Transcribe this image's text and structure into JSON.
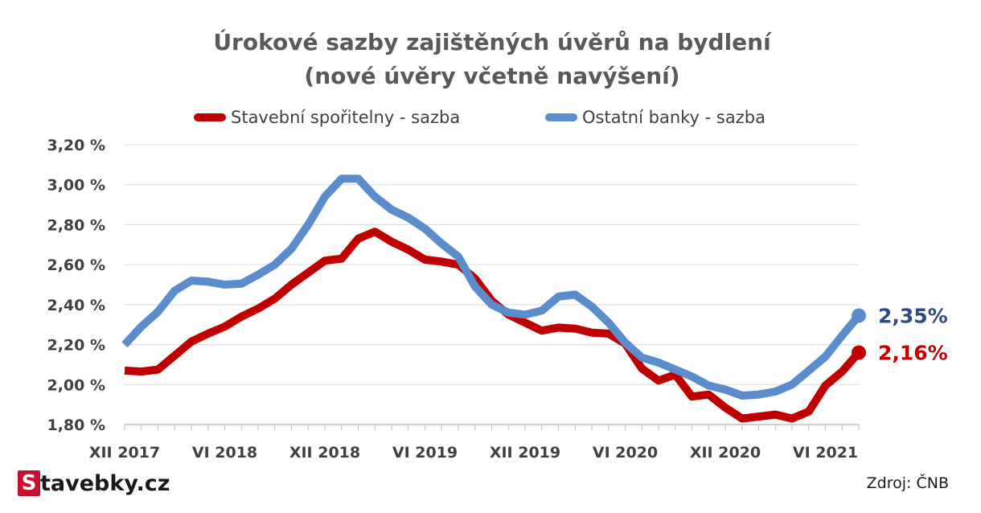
{
  "brand": {
    "logo_letter": "S",
    "rest": "tavebky.cz"
  },
  "source": "Zdroj: ČNB",
  "colors": {
    "red": "#c00000",
    "blue": "#5b8ccc",
    "blue_label": "#2e4a7e",
    "axis": "#bfbfbf",
    "grid": "#d9d9d9"
  },
  "chart_data": {
    "type": "line",
    "title": "Úrokové sazby zajištěných úvěrů na bydlení",
    "subtitle": "(nové úvěry včetně navýšení)",
    "ylim": [
      1.8,
      3.2
    ],
    "y_ticks": [
      {
        "value": 3.2,
        "label": "3,20 %"
      },
      {
        "value": 3.0,
        "label": "3,00 %"
      },
      {
        "value": 2.8,
        "label": "2,80 %"
      },
      {
        "value": 2.6,
        "label": "2,60 %"
      },
      {
        "value": 2.4,
        "label": "2,40 %"
      },
      {
        "value": 2.2,
        "label": "2,20 %"
      },
      {
        "value": 2.0,
        "label": "2,00 %"
      },
      {
        "value": 1.8,
        "label": "1,80 %"
      }
    ],
    "x_ticks": [
      {
        "index": 0,
        "label": "XII 2017"
      },
      {
        "index": 6,
        "label": "VI 2018"
      },
      {
        "index": 12,
        "label": "XII 2018"
      },
      {
        "index": 18,
        "label": "VI 2019"
      },
      {
        "index": 24,
        "label": "XII 2019"
      },
      {
        "index": 30,
        "label": "VI 2020"
      },
      {
        "index": 36,
        "label": "XII 2020"
      },
      {
        "index": 42,
        "label": "VI 2021"
      }
    ],
    "grid": true,
    "legend_position": "top",
    "series": [
      {
        "name": "Stavební spořitelny - sazba",
        "color": "#c00000",
        "end_label": "2,16%",
        "values": [
          2.07,
          2.065,
          2.075,
          2.145,
          2.215,
          2.255,
          2.29,
          2.34,
          2.38,
          2.43,
          2.5,
          2.56,
          2.62,
          2.63,
          2.73,
          2.765,
          2.715,
          2.675,
          2.625,
          2.615,
          2.6,
          2.53,
          2.42,
          2.35,
          2.31,
          2.27,
          2.285,
          2.28,
          2.26,
          2.255,
          2.205,
          2.08,
          2.02,
          2.05,
          1.94,
          1.95,
          1.885,
          1.83,
          1.84,
          1.85,
          1.83,
          1.865,
          1.995,
          2.065,
          2.16
        ]
      },
      {
        "name": "Ostatní banky - sazba",
        "color": "#5b8ccc",
        "end_label": "2,35%",
        "values": [
          2.2,
          2.29,
          2.365,
          2.47,
          2.52,
          2.515,
          2.5,
          2.505,
          2.55,
          2.6,
          2.68,
          2.8,
          2.94,
          3.03,
          3.03,
          2.94,
          2.875,
          2.835,
          2.78,
          2.705,
          2.64,
          2.49,
          2.4,
          2.36,
          2.35,
          2.37,
          2.44,
          2.45,
          2.39,
          2.31,
          2.21,
          2.135,
          2.11,
          2.075,
          2.04,
          1.995,
          1.975,
          1.945,
          1.95,
          1.965,
          2.0,
          2.07,
          2.14,
          2.245,
          2.345
        ]
      }
    ]
  }
}
